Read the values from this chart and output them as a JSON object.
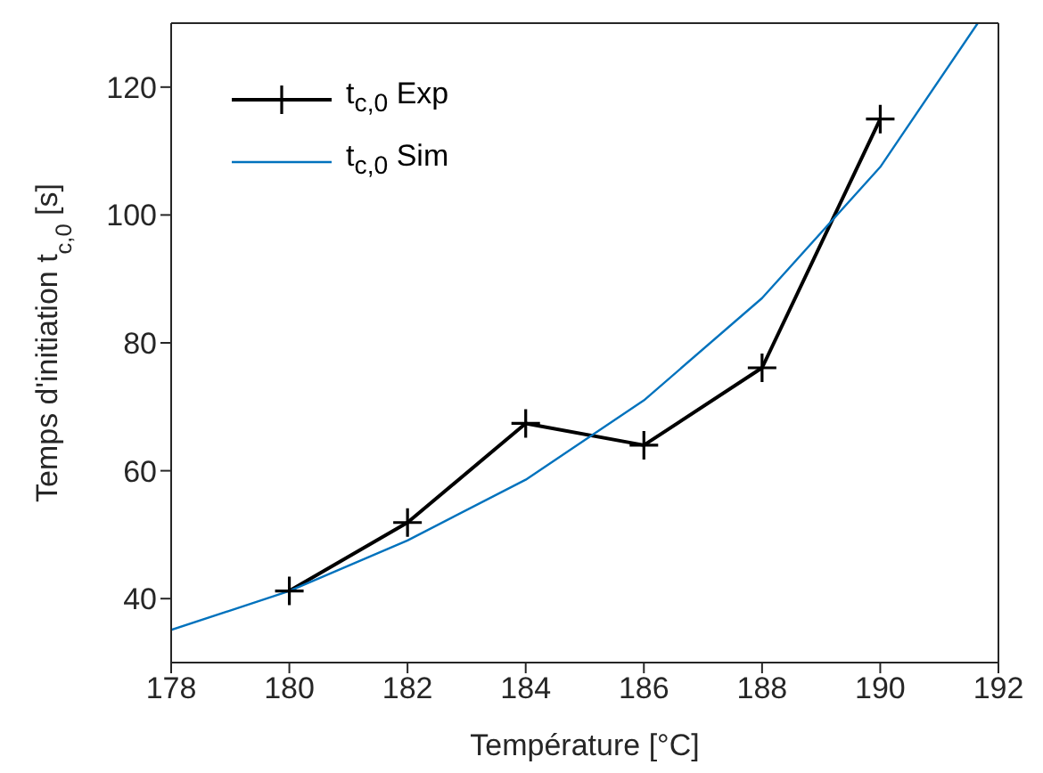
{
  "chart_data": {
    "type": "line",
    "xlabel": "Température [°C]",
    "ylabel": "Temps d'initiation t$_{c,0}$ [s]",
    "xlim": [
      178,
      192
    ],
    "xticks": [
      178,
      180,
      182,
      184,
      186,
      188,
      190,
      192
    ],
    "ylim": [
      30,
      130
    ],
    "yticks": [
      40,
      60,
      80,
      100,
      120
    ],
    "legend": "top left",
    "series": [
      {
        "name": "t$_{c,0}$ Exp",
        "color": "#000000",
        "marker": "cross",
        "x": [
          180,
          182,
          184,
          186,
          188,
          190
        ],
        "values": [
          41.2,
          51.9,
          67.4,
          64,
          76.1,
          115
        ]
      },
      {
        "name": "t$_{c,0}$ Sim",
        "color": "#0072bd",
        "marker": "none",
        "x": [
          178,
          180,
          182,
          184,
          186,
          188,
          190,
          191.65
        ],
        "values": [
          35.1,
          41.2,
          49.1,
          58.6,
          71,
          87,
          107.5,
          130
        ]
      }
    ]
  }
}
